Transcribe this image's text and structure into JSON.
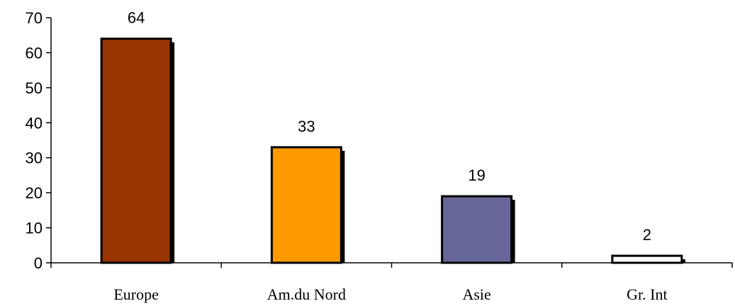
{
  "chart_data": {
    "type": "bar",
    "title": "",
    "xlabel": "",
    "ylabel": "",
    "categories": [
      "Europe",
      "Am.du Nord",
      "Asie",
      "Gr. Int"
    ],
    "values": [
      64,
      33,
      19,
      2
    ],
    "value_labels": [
      "64",
      "33",
      "19",
      "2"
    ],
    "colors": [
      "#993300",
      "#FF9900",
      "#666699",
      "#FFFFFF"
    ],
    "ylim": [
      0,
      70
    ],
    "yticks": [
      0,
      10,
      20,
      30,
      40,
      50,
      60,
      70
    ],
    "ytick_labels": [
      "0",
      "10",
      "20",
      "30",
      "40",
      "50",
      "60",
      "70"
    ],
    "grid": false,
    "legend": "none"
  }
}
